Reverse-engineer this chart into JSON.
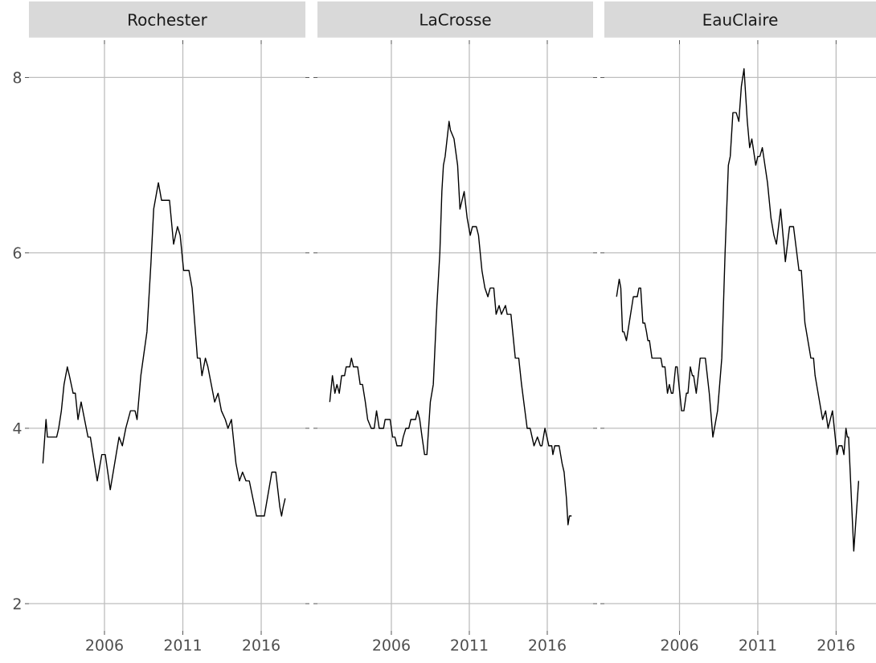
{
  "chart_data": [
    {
      "type": "line",
      "title": "Rochester",
      "color": "#000000",
      "grid": true,
      "xlim": [
        2001.18,
        2018.82
      ],
      "ylim": [
        1.69,
        8.38
      ],
      "xticks": [
        2006,
        2011,
        2016
      ],
      "yticks": [
        2,
        4,
        6,
        8
      ],
      "x": [
        2002.07,
        2002.27,
        2002.36,
        2002.95,
        2003.08,
        2003.25,
        2003.42,
        2003.63,
        2003.76,
        2004.0,
        2004.14,
        2004.31,
        2004.51,
        2004.95,
        2005.1,
        2005.54,
        2005.83,
        2006.05,
        2006.37,
        2006.93,
        2007.14,
        2007.36,
        2007.66,
        2007.95,
        2008.08,
        2008.32,
        2008.71,
        2008.97,
        2009.14,
        2009.44,
        2009.64,
        2010.15,
        2010.41,
        2010.66,
        2010.83,
        2011.05,
        2011.39,
        2011.59,
        2011.93,
        2012.1,
        2012.22,
        2012.44,
        2012.6,
        2013.03,
        2013.25,
        2013.46,
        2013.71,
        2013.88,
        2014.1,
        2014.39,
        2014.61,
        2014.81,
        2015.03,
        2015.24,
        2015.7,
        2016.2,
        2016.68,
        2016.93,
        2017.19,
        2017.3,
        2017.4,
        2017.53
      ],
      "values": [
        3.6,
        4.1,
        3.9,
        3.9,
        4.0,
        4.2,
        4.5,
        4.7,
        4.6,
        4.4,
        4.4,
        4.1,
        4.3,
        3.9,
        3.9,
        3.4,
        3.7,
        3.7,
        3.3,
        3.9,
        3.8,
        4.0,
        4.2,
        4.2,
        4.1,
        4.6,
        5.1,
        5.9,
        6.5,
        6.8,
        6.6,
        6.6,
        6.1,
        6.3,
        6.2,
        5.8,
        5.8,
        5.6,
        4.8,
        4.8,
        4.6,
        4.8,
        4.7,
        4.3,
        4.4,
        4.2,
        4.1,
        4.0,
        4.1,
        3.6,
        3.4,
        3.5,
        3.4,
        3.4,
        3.0,
        3.0,
        3.5,
        3.5,
        3.1,
        3.0,
        3.1,
        3.2
      ]
    },
    {
      "type": "line",
      "title": "LaCrosse",
      "color": "#000000",
      "grid": true,
      "tick_labels": "x",
      "xlim": [
        2001.26,
        2018.94
      ],
      "ylim": [
        1.69,
        8.38
      ],
      "xticks": [
        2006,
        2011,
        2016
      ],
      "yticks": [
        2,
        4,
        6,
        8
      ],
      "x": [
        2002.05,
        2002.22,
        2002.38,
        2002.51,
        2002.66,
        2002.81,
        2003.0,
        2003.1,
        2003.33,
        2003.44,
        2003.57,
        2003.84,
        2004.0,
        2004.15,
        2004.33,
        2004.48,
        2004.71,
        2004.9,
        2005.05,
        2005.22,
        2005.5,
        2005.6,
        2005.92,
        2006.08,
        2006.23,
        2006.36,
        2006.65,
        2006.76,
        2006.93,
        2007.12,
        2007.25,
        2007.55,
        2007.69,
        2007.82,
        2007.97,
        2008.13,
        2008.28,
        2008.5,
        2008.69,
        2008.92,
        2009.11,
        2009.24,
        2009.34,
        2009.45,
        2009.7,
        2009.79,
        2010.02,
        2010.25,
        2010.4,
        2010.67,
        2010.86,
        2011.06,
        2011.2,
        2011.45,
        2011.59,
        2011.81,
        2012.0,
        2012.19,
        2012.34,
        2012.57,
        2012.72,
        2012.91,
        2013.06,
        2013.32,
        2013.43,
        2013.67,
        2013.95,
        2014.17,
        2014.35,
        2014.71,
        2014.9,
        2015.15,
        2015.37,
        2015.56,
        2015.66,
        2015.85,
        2016.1,
        2016.29,
        2016.36,
        2016.48,
        2016.76,
        2016.95,
        2017.08,
        2017.23,
        2017.33,
        2017.42,
        2017.56
      ],
      "values": [
        4.3,
        4.6,
        4.4,
        4.5,
        4.4,
        4.6,
        4.6,
        4.7,
        4.7,
        4.8,
        4.7,
        4.7,
        4.5,
        4.5,
        4.3,
        4.1,
        4.0,
        4.0,
        4.2,
        4.0,
        4.0,
        4.1,
        4.1,
        3.9,
        3.9,
        3.8,
        3.8,
        3.9,
        4.0,
        4.0,
        4.1,
        4.1,
        4.2,
        4.1,
        3.9,
        3.7,
        3.7,
        4.3,
        4.5,
        5.4,
        6.0,
        6.7,
        7.0,
        7.1,
        7.5,
        7.4,
        7.3,
        7.0,
        6.5,
        6.7,
        6.4,
        6.2,
        6.3,
        6.3,
        6.2,
        5.8,
        5.6,
        5.5,
        5.6,
        5.6,
        5.3,
        5.4,
        5.3,
        5.4,
        5.3,
        5.3,
        4.8,
        4.8,
        4.5,
        4.0,
        4.0,
        3.8,
        3.9,
        3.8,
        3.8,
        4.0,
        3.8,
        3.8,
        3.7,
        3.8,
        3.8,
        3.6,
        3.5,
        3.2,
        2.9,
        3.0,
        3.0
      ]
    },
    {
      "type": "line",
      "title": "EauClaire",
      "color": "#000000",
      "grid": true,
      "tick_labels": "x",
      "xlim": [
        2001.2,
        2018.55
      ],
      "ylim": [
        1.69,
        8.38
      ],
      "xticks": [
        2006,
        2011,
        2016
      ],
      "yticks": [
        2,
        4,
        6,
        8
      ],
      "x": [
        2001.98,
        2002.15,
        2002.25,
        2002.36,
        2002.45,
        2002.61,
        2003.05,
        2003.3,
        2003.41,
        2003.52,
        2003.66,
        2003.78,
        2003.89,
        2003.98,
        2004.08,
        2004.24,
        2004.81,
        2004.91,
        2005.07,
        2005.23,
        2005.35,
        2005.48,
        2005.58,
        2005.75,
        2005.85,
        2006.13,
        2006.28,
        2006.44,
        2006.54,
        2006.69,
        2006.82,
        2006.9,
        2007.07,
        2007.32,
        2007.65,
        2007.9,
        2008.13,
        2008.43,
        2008.7,
        2008.91,
        2009.12,
        2009.24,
        2009.41,
        2009.62,
        2009.79,
        2009.95,
        2010.12,
        2010.33,
        2010.48,
        2010.62,
        2010.87,
        2011.0,
        2011.13,
        2011.29,
        2011.62,
        2011.84,
        2012.03,
        2012.19,
        2012.46,
        2012.76,
        2013.03,
        2013.28,
        2013.63,
        2013.78,
        2014.01,
        2014.39,
        2014.56,
        2014.66,
        2015.14,
        2015.33,
        2015.49,
        2015.77,
        2016.06,
        2016.17,
        2016.38,
        2016.5,
        2016.63,
        2016.72,
        2016.8,
        2017.13,
        2017.44
      ],
      "values": [
        5.5,
        5.7,
        5.6,
        5.1,
        5.1,
        5.0,
        5.5,
        5.5,
        5.6,
        5.6,
        5.2,
        5.2,
        5.1,
        5.0,
        5.0,
        4.8,
        4.8,
        4.7,
        4.7,
        4.4,
        4.5,
        4.4,
        4.4,
        4.7,
        4.7,
        4.2,
        4.2,
        4.4,
        4.4,
        4.7,
        4.6,
        4.6,
        4.4,
        4.8,
        4.8,
        4.4,
        3.9,
        4.2,
        4.8,
        6.0,
        7.0,
        7.1,
        7.6,
        7.6,
        7.5,
        7.9,
        8.1,
        7.5,
        7.2,
        7.3,
        7.0,
        7.1,
        7.1,
        7.2,
        6.8,
        6.4,
        6.2,
        6.1,
        6.5,
        5.9,
        6.3,
        6.3,
        5.8,
        5.8,
        5.2,
        4.8,
        4.8,
        4.6,
        4.1,
        4.2,
        4.0,
        4.2,
        3.7,
        3.8,
        3.8,
        3.7,
        4.0,
        3.9,
        3.9,
        2.6,
        3.4
      ]
    }
  ]
}
